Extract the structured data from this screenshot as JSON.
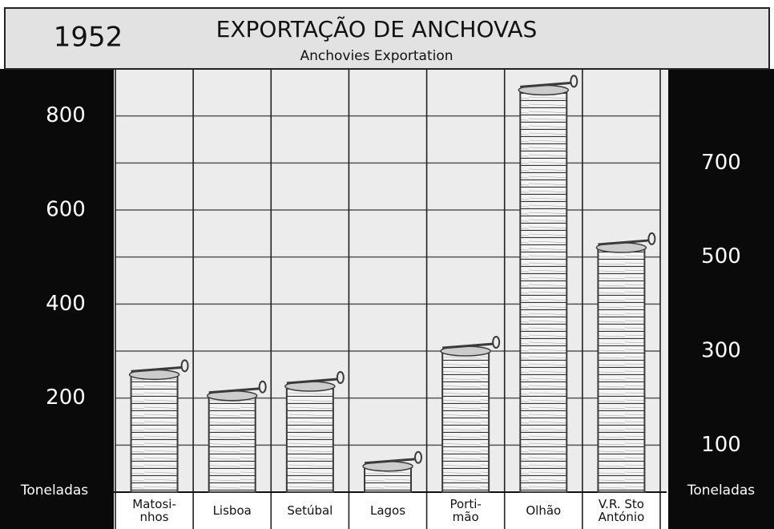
{
  "chart_data": {
    "type": "bar",
    "title": "EXPORTAÇÃO DE ANCHOVAS",
    "subtitle": "Anchovies Exportation",
    "year": "1952",
    "y_label": "Toneladas",
    "y2_label": "Toneladas",
    "categories": [
      "Matosi-\nnhos",
      "Lisboa",
      "Setúbal",
      "Lagos",
      "Porti-\nmão",
      "Olhão",
      "V.R. Sto\nAntónio"
    ],
    "values": [
      250,
      205,
      225,
      55,
      300,
      855,
      520
    ],
    "color": "#3a3a3a",
    "ylim": [
      0,
      900
    ],
    "yticks": [
      200,
      400,
      600,
      800
    ],
    "y2lim": [
      0,
      900
    ],
    "y2ticks": [
      100,
      300,
      500,
      700
    ],
    "grid": true
  }
}
